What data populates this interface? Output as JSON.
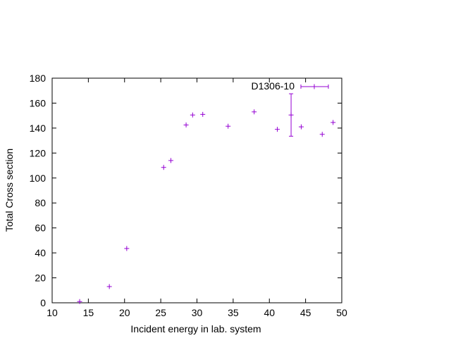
{
  "chart_data": {
    "type": "scatter",
    "title": "",
    "xlabel": "Incident energy in lab. system",
    "ylabel": "Total Cross section",
    "xlim": [
      10,
      50
    ],
    "ylim": [
      0,
      180
    ],
    "xticks": [
      10,
      15,
      20,
      25,
      30,
      35,
      40,
      45,
      50
    ],
    "yticks": [
      0,
      20,
      40,
      60,
      80,
      100,
      120,
      140,
      160,
      180
    ],
    "grid": false,
    "legend_position": "top-right",
    "series": [
      {
        "name": "D1306-10",
        "color": "#9400d3",
        "marker": "plus",
        "points": [
          {
            "x": 13.8,
            "y": 1
          },
          {
            "x": 17.9,
            "y": 13
          },
          {
            "x": 20.3,
            "y": 43.5
          },
          {
            "x": 25.4,
            "y": 108.5
          },
          {
            "x": 26.4,
            "y": 114
          },
          {
            "x": 28.5,
            "y": 142.5
          },
          {
            "x": 29.4,
            "y": 150.5
          },
          {
            "x": 30.8,
            "y": 151
          },
          {
            "x": 34.3,
            "y": 141.5
          },
          {
            "x": 37.9,
            "y": 153
          },
          {
            "x": 41.1,
            "y": 139
          },
          {
            "x": 43.0,
            "y": 150.5,
            "yerr": 17
          },
          {
            "x": 44.4,
            "y": 141
          },
          {
            "x": 47.3,
            "y": 135
          },
          {
            "x": 48.8,
            "y": 144.5
          }
        ]
      }
    ]
  }
}
